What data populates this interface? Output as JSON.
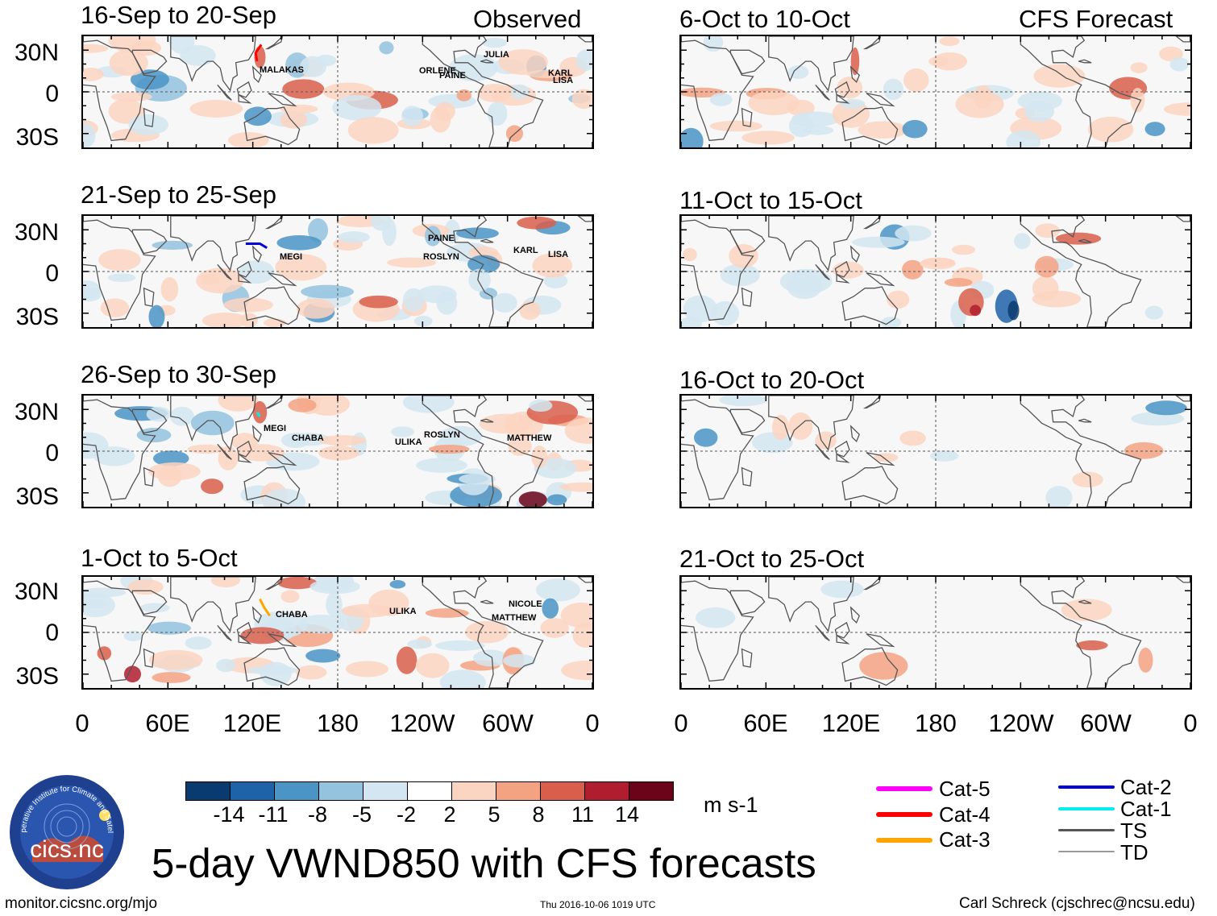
{
  "chart_data": {
    "type": "heatmap",
    "title": "5-day VWND850 with CFS forecasts",
    "variable": "VWND850",
    "units": "m s-1",
    "colorbar": {
      "ticks": [
        "-14",
        "-11",
        "-8",
        "-5",
        "-2",
        "2",
        "5",
        "8",
        "11",
        "14"
      ],
      "colors": [
        "#0a3b70",
        "#1e62a8",
        "#4a94c6",
        "#93c3df",
        "#d4e6f1",
        "#ffffff",
        "#fbd5c1",
        "#f3a282",
        "#d95f4c",
        "#b01d2e",
        "#6b0419"
      ]
    },
    "x_ticks": [
      "0",
      "60E",
      "120E",
      "180",
      "120W",
      "60W",
      "0"
    ],
    "y_ticks": [
      "30N",
      "0",
      "30S"
    ],
    "columns": {
      "observed": "Observed",
      "forecast": "CFS Forecast"
    },
    "panels": [
      {
        "period": "16-Sep to 20-Sep",
        "source": "Observed",
        "storms": [
          "MALAKAS",
          "ORLENE",
          "PAINE",
          "JULIA",
          "KARL",
          "LISA"
        ]
      },
      {
        "period": "21-Sep to 25-Sep",
        "source": "Observed",
        "storms": [
          "MEGI",
          "PAINE",
          "ROSLYN",
          "KARL",
          "LISA"
        ]
      },
      {
        "period": "26-Sep to 30-Sep",
        "source": "Observed",
        "storms": [
          "MEGI",
          "CHABA",
          "ULIKA",
          "ROSLYN",
          "MATTHEW"
        ]
      },
      {
        "period": "1-Oct to 5-Oct",
        "source": "Observed",
        "storms": [
          "CHABA",
          "ULIKA",
          "NICOLE",
          "MATTHEW"
        ]
      },
      {
        "period": "6-Oct to 10-Oct",
        "source": "CFS Forecast",
        "storms": []
      },
      {
        "period": "11-Oct to 15-Oct",
        "source": "CFS Forecast",
        "storms": []
      },
      {
        "period": "16-Oct to 20-Oct",
        "source": "CFS Forecast",
        "storms": []
      },
      {
        "period": "21-Oct to 25-Oct",
        "source": "CFS Forecast",
        "storms": []
      }
    ],
    "storm_legend": [
      {
        "label": "Cat-5",
        "color": "#ff00ff"
      },
      {
        "label": "Cat-4",
        "color": "#ff0000"
      },
      {
        "label": "Cat-3",
        "color": "#ffa500"
      },
      {
        "label": "Cat-2",
        "color": "#0000dd"
      },
      {
        "label": "Cat-1",
        "color": "#00eeee"
      },
      {
        "label": "TS",
        "color": "#555555"
      },
      {
        "label": "TD",
        "color": "#999999"
      }
    ]
  },
  "footer": {
    "url": "monitor.cicsnc.org/mjo",
    "timestamp": "Thu 2016-10-06 1019 UTC",
    "author": "Carl Schreck (cjschrec@ncsu.edu)"
  },
  "logo": {
    "text": "cics.nc",
    "ring_text": "Cooperative Institute for Climate and Satellites"
  }
}
